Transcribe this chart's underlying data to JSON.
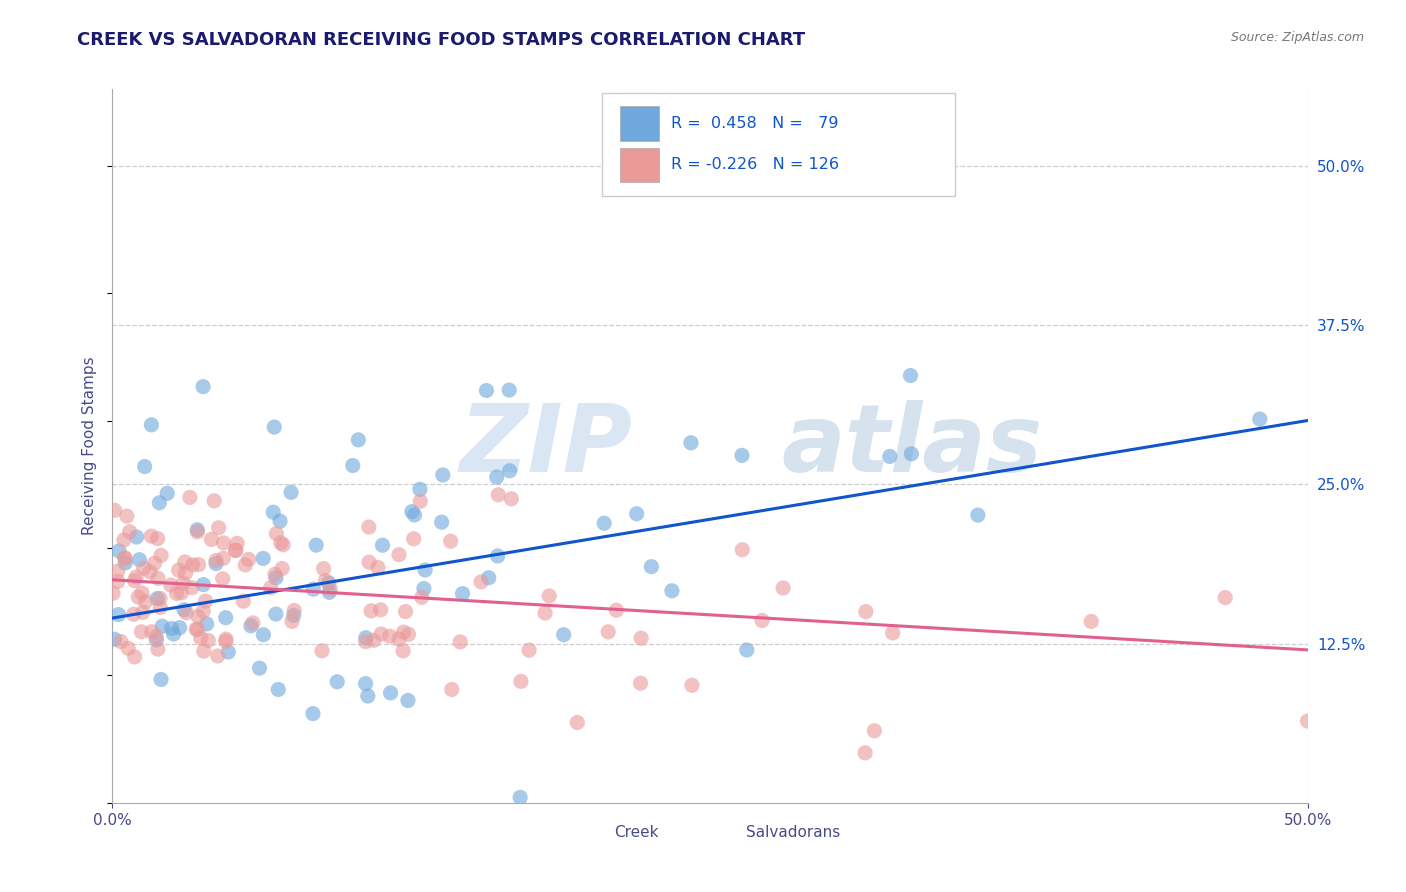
{
  "title": "CREEK VS SALVADORAN RECEIVING FOOD STAMPS CORRELATION CHART",
  "source": "Source: ZipAtlas.com",
  "ylabel": "Receiving Food Stamps",
  "xlim": [
    0.0,
    0.5
  ],
  "ylim": [
    0.0,
    0.56
  ],
  "xtick_labels": [
    "0.0%",
    "50.0%"
  ],
  "xtick_vals": [
    0.0,
    0.5
  ],
  "ytick_labels": [
    "12.5%",
    "25.0%",
    "37.5%",
    "50.0%"
  ],
  "ytick_vals": [
    0.125,
    0.25,
    0.375,
    0.5
  ],
  "creek_color": "#6fa8dc",
  "salvadoran_color": "#ea9999",
  "creek_line_color": "#1155cc",
  "salvadoran_line_color": "#e06090",
  "creek_R": 0.458,
  "creek_N": 79,
  "salvadoran_R": -0.226,
  "salvadoran_N": 126,
  "legend_label_creek": "Creek",
  "legend_label_salvadoran": "Salvadorans",
  "watermark_zip": "ZIP",
  "watermark_atlas": "atlas",
  "background_color": "#ffffff",
  "grid_color": "#cccccc",
  "title_color": "#1a1a6e",
  "title_fontsize": 13,
  "label_color": "#4a4a8a",
  "axis_color": "#4a4a8a",
  "creek_line_intercept": 0.145,
  "creek_line_slope": 0.31,
  "salvadoran_line_intercept": 0.175,
  "salvadoran_line_slope": -0.11
}
